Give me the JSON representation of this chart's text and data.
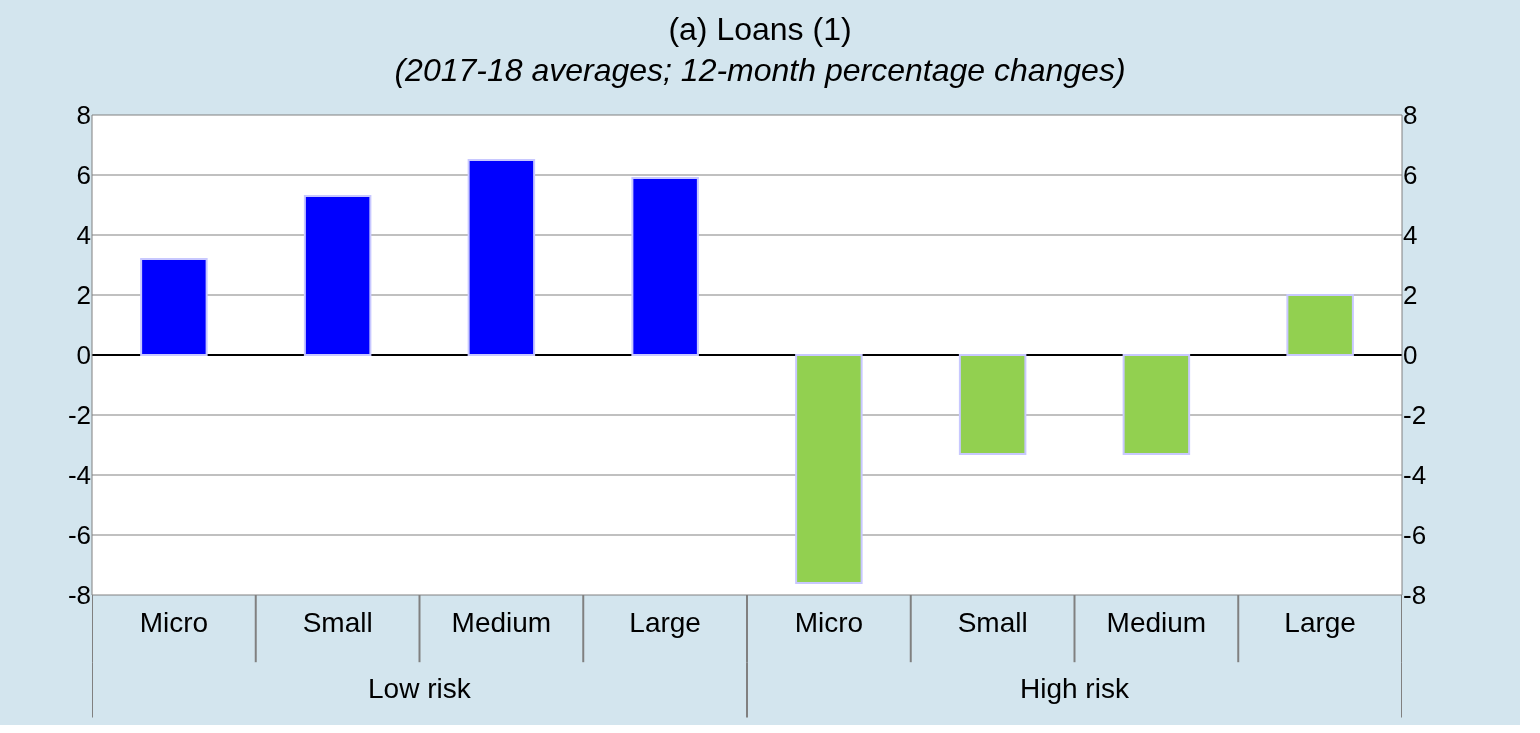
{
  "chart_data": {
    "type": "bar",
    "title": "(a) Loans (1)",
    "subtitle": "(2017-18 averages; 12-month percentage changes)",
    "categories": [
      "Micro",
      "Small",
      "Medium",
      "Large",
      "Micro",
      "Small",
      "Medium",
      "Large"
    ],
    "values": [
      3.2,
      5.3,
      6.5,
      5.9,
      -7.6,
      -3.3,
      -3.3,
      2.0
    ],
    "colors": [
      "#0000ff",
      "#0000ff",
      "#0000ff",
      "#0000ff",
      "#92d050",
      "#92d050",
      "#92d050",
      "#92d050"
    ],
    "annotations": [
      "Low risk",
      "High risk"
    ],
    "ylim": [
      -8,
      8
    ],
    "yticks": [
      -8,
      -6,
      -4,
      -2,
      0,
      2,
      4,
      6,
      8
    ],
    "y2lim": [
      -8,
      8
    ],
    "y2ticks": [
      -8,
      -6,
      -4,
      -2,
      0,
      2,
      4,
      6,
      8
    ],
    "grid": "y"
  }
}
